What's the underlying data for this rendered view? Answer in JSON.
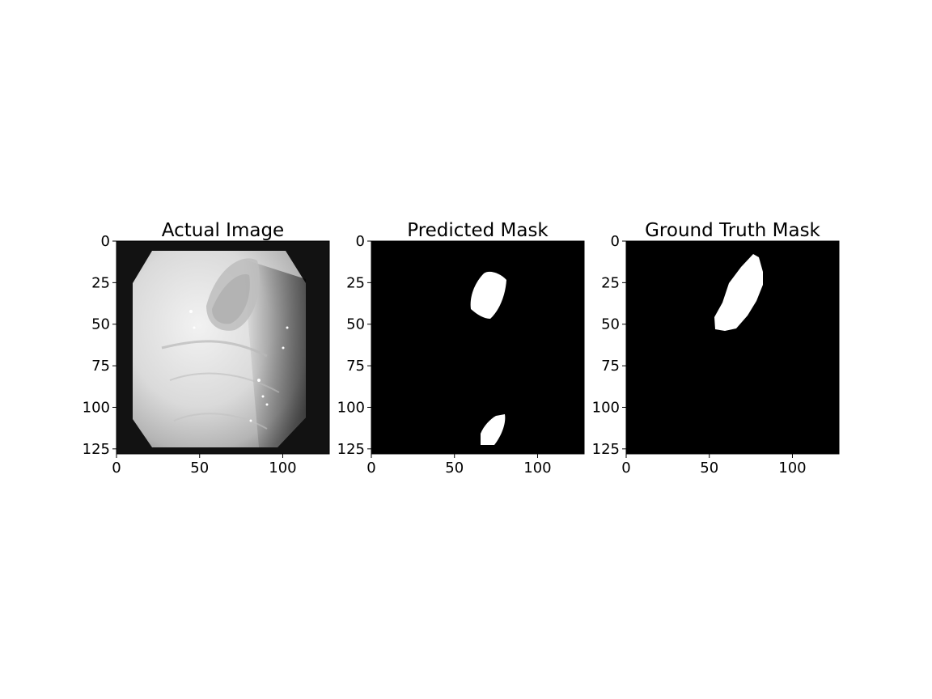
{
  "figure": {
    "panels": [
      {
        "id": "actual",
        "title": "Actual Image",
        "content": "endoscopy-photo",
        "xlim": [
          0,
          128
        ],
        "ylim": [
          0,
          128
        ],
        "xticks": [
          {
            "value": 0,
            "label": "0"
          },
          {
            "value": 50,
            "label": "50"
          },
          {
            "value": 100,
            "label": "100"
          }
        ],
        "yticks": [
          {
            "value": 0,
            "label": "0"
          },
          {
            "value": 25,
            "label": "25"
          },
          {
            "value": 50,
            "label": "50"
          },
          {
            "value": 75,
            "label": "75"
          },
          {
            "value": 100,
            "label": "100"
          },
          {
            "value": 125,
            "label": "125"
          }
        ]
      },
      {
        "id": "predicted",
        "title": "Predicted Mask",
        "content": "binary-mask",
        "xlim": [
          0,
          128
        ],
        "ylim": [
          0,
          128
        ],
        "xticks": [
          {
            "value": 0,
            "label": "0"
          },
          {
            "value": 50,
            "label": "50"
          },
          {
            "value": 100,
            "label": "100"
          }
        ],
        "yticks": [
          {
            "value": 0,
            "label": "0"
          },
          {
            "value": 25,
            "label": "25"
          },
          {
            "value": 50,
            "label": "50"
          },
          {
            "value": 75,
            "label": "75"
          },
          {
            "value": 100,
            "label": "100"
          },
          {
            "value": 125,
            "label": "125"
          }
        ]
      },
      {
        "id": "ground-truth",
        "title": "Ground Truth Mask",
        "content": "binary-mask",
        "xlim": [
          0,
          128
        ],
        "ylim": [
          0,
          128
        ],
        "xticks": [
          {
            "value": 0,
            "label": "0"
          },
          {
            "value": 50,
            "label": "50"
          },
          {
            "value": 100,
            "label": "100"
          }
        ],
        "yticks": [
          {
            "value": 0,
            "label": "0"
          },
          {
            "value": 25,
            "label": "25"
          },
          {
            "value": 50,
            "label": "50"
          },
          {
            "value": 75,
            "label": "75"
          },
          {
            "value": 100,
            "label": "100"
          },
          {
            "value": 125,
            "label": "125"
          }
        ]
      }
    ],
    "colors": {
      "mask_background": "#000000",
      "mask_foreground": "#ffffff",
      "photo_tissue": "#d6d6d6",
      "photo_border": "#141414"
    }
  }
}
